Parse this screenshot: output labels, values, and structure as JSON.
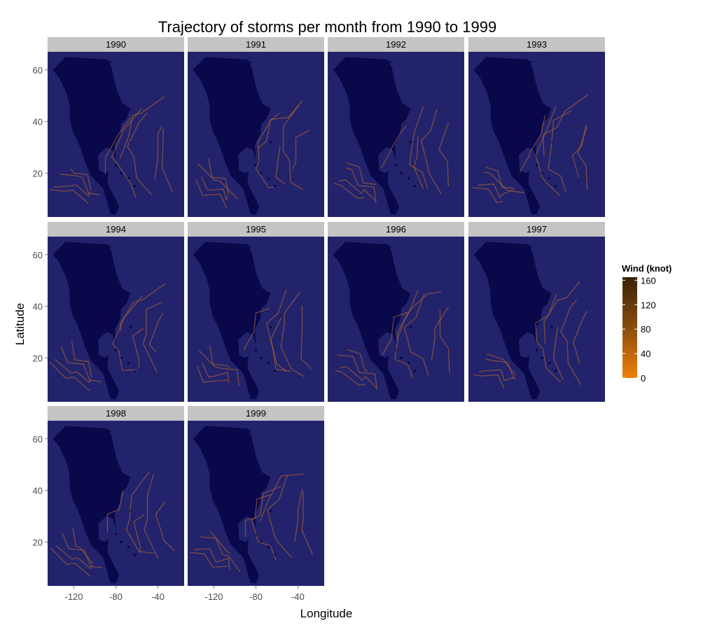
{
  "chart_data": {
    "type": "map-facets",
    "title": "Trajectory of storms per month from 1990 to 1999",
    "xlabel": "Longitude",
    "ylabel": "Latitude",
    "facets": [
      "1990",
      "1991",
      "1992",
      "1993",
      "1994",
      "1995",
      "1996",
      "1997",
      "1998",
      "1999"
    ],
    "xlim": [
      -145,
      -15
    ],
    "ylim": [
      3,
      67
    ],
    "x_ticks": [
      -120,
      -80,
      -40
    ],
    "x_tick_labels": [
      "-120",
      "-80",
      "-40"
    ],
    "y_ticks": [
      20,
      40,
      60
    ],
    "y_tick_labels": [
      "20",
      "40",
      "60"
    ],
    "legend": {
      "title": "Wind (knot)",
      "ticks": [
        0,
        40,
        80,
        120,
        160
      ],
      "tick_labels": [
        "0",
        "40",
        "80",
        "120",
        "160"
      ],
      "low_color": "#f07f09",
      "high_color": "#3a2106"
    },
    "colors": {
      "panel_background": "#23236b",
      "land": "#08084a",
      "strip": "#c4c4c4",
      "track": "#c26f2a"
    },
    "land_polygon": [
      [
        -128,
        65
      ],
      [
        -88,
        64
      ],
      [
        -84,
        61
      ],
      [
        -82,
        57
      ],
      [
        -79,
        52
      ],
      [
        -74,
        47
      ],
      [
        -66,
        45
      ],
      [
        -70,
        41
      ],
      [
        -75,
        39
      ],
      [
        -76,
        35
      ],
      [
        -81,
        31
      ],
      [
        -80,
        25
      ],
      [
        -83,
        29
      ],
      [
        -89,
        30
      ],
      [
        -97,
        27
      ],
      [
        -96,
        21
      ],
      [
        -90,
        20
      ],
      [
        -87,
        21
      ],
      [
        -88,
        16
      ],
      [
        -83,
        12
      ],
      [
        -79,
        9
      ],
      [
        -77,
        7
      ],
      [
        -80,
        4
      ],
      [
        -85,
        4
      ],
      [
        -92,
        14
      ],
      [
        -104,
        19
      ],
      [
        -109,
        24
      ],
      [
        -114,
        30
      ],
      [
        -117,
        33
      ],
      [
        -121,
        36
      ],
      [
        -124,
        41
      ],
      [
        -124,
        46
      ],
      [
        -127,
        51
      ],
      [
        -134,
        57
      ],
      [
        -140,
        60
      ]
    ],
    "tracks": [
      [
        [
          -135,
          17
        ],
        [
          -125,
          15
        ],
        [
          -115,
          13
        ],
        [
          -108,
          12
        ],
        [
          -103,
          11
        ]
      ],
      [
        [
          -132,
          22
        ],
        [
          -122,
          19
        ],
        [
          -112,
          16
        ],
        [
          -102,
          13
        ],
        [
          -96,
          10
        ]
      ],
      [
        [
          -125,
          24
        ],
        [
          -118,
          20
        ],
        [
          -110,
          17
        ],
        [
          -103,
          14
        ]
      ],
      [
        [
          -140,
          16
        ],
        [
          -130,
          13
        ],
        [
          -118,
          11
        ],
        [
          -108,
          9
        ]
      ],
      [
        [
          -60,
          13
        ],
        [
          -70,
          16
        ],
        [
          -78,
          21
        ],
        [
          -80,
          27
        ],
        [
          -77,
          32
        ],
        [
          -70,
          38
        ],
        [
          -58,
          44
        ]
      ],
      [
        [
          -48,
          14
        ],
        [
          -58,
          18
        ],
        [
          -66,
          24
        ],
        [
          -68,
          31
        ],
        [
          -62,
          38
        ],
        [
          -50,
          45
        ]
      ],
      [
        [
          -38,
          12
        ],
        [
          -46,
          18
        ],
        [
          -52,
          24
        ],
        [
          -54,
          31
        ],
        [
          -50,
          38
        ],
        [
          -40,
          44
        ]
      ],
      [
        [
          -75,
          28
        ],
        [
          -72,
          34
        ],
        [
          -64,
          40
        ],
        [
          -52,
          44
        ],
        [
          -35,
          48
        ]
      ],
      [
        [
          -92,
          22
        ],
        [
          -88,
          26
        ],
        [
          -84,
          30
        ],
        [
          -78,
          35
        ],
        [
          -70,
          40
        ]
      ],
      [
        [
          -55,
          14
        ],
        [
          -60,
          20
        ],
        [
          -62,
          27
        ],
        [
          -57,
          33
        ]
      ],
      [
        [
          -42,
          20
        ],
        [
          -44,
          26
        ],
        [
          -40,
          33
        ],
        [
          -32,
          39
        ]
      ],
      [
        [
          -28,
          15
        ],
        [
          -34,
          22
        ],
        [
          -38,
          30
        ],
        [
          -34,
          38
        ]
      ]
    ]
  }
}
